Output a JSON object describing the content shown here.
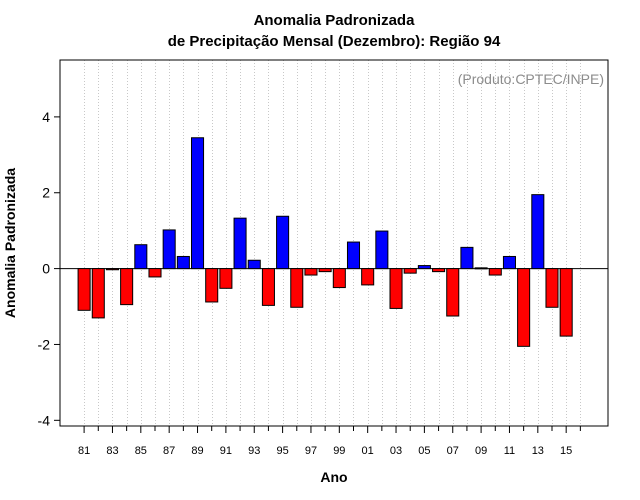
{
  "chart_data": {
    "type": "bar",
    "title_line1": "Anomalia Padronizada",
    "title_line2": "de Precipitação Mensal (Dezembro): Região 94",
    "xlabel": "Ano",
    "ylabel": "Anomalia Padronizada",
    "credit": "(Produto:CPTEC/INPE)",
    "ylim": [
      -4.15,
      5.5
    ],
    "yticks": [
      -4,
      -2,
      0,
      2,
      4
    ],
    "yticks_labels": [
      "-4",
      "-2",
      "0",
      "2",
      "4"
    ],
    "xlim": [
      1979.3,
      2017.95
    ],
    "x_tick_labels": [
      "81",
      "83",
      "85",
      "87",
      "89",
      "91",
      "93",
      "95",
      "97",
      "99",
      "01",
      "03",
      "05",
      "07",
      "09",
      "11",
      "13",
      "15"
    ],
    "x_minor_ticks": "every year 1981-2016",
    "grid": "vertical dotted",
    "colors": {
      "positive": "#0000ff",
      "negative": "#ff0000"
    },
    "categories": [
      1981,
      1982,
      1983,
      1984,
      1985,
      1986,
      1987,
      1988,
      1989,
      1990,
      1991,
      1992,
      1993,
      1994,
      1995,
      1996,
      1997,
      1998,
      1999,
      2000,
      2001,
      2002,
      2003,
      2004,
      2005,
      2006,
      2007,
      2008,
      2009,
      2010,
      2011,
      2012,
      2013,
      2014,
      2015
    ],
    "values": [
      -1.1,
      -1.3,
      -0.03,
      -0.95,
      0.63,
      -0.22,
      1.02,
      0.32,
      3.45,
      -0.88,
      -0.52,
      1.33,
      0.22,
      -0.97,
      1.38,
      -1.02,
      -0.17,
      -0.08,
      -0.5,
      0.7,
      -0.43,
      0.99,
      -1.05,
      -0.12,
      0.08,
      -0.08,
      -1.25,
      0.56,
      0.02,
      -0.17,
      0.32,
      -2.05,
      1.95,
      -1.02,
      -1.78
    ]
  }
}
